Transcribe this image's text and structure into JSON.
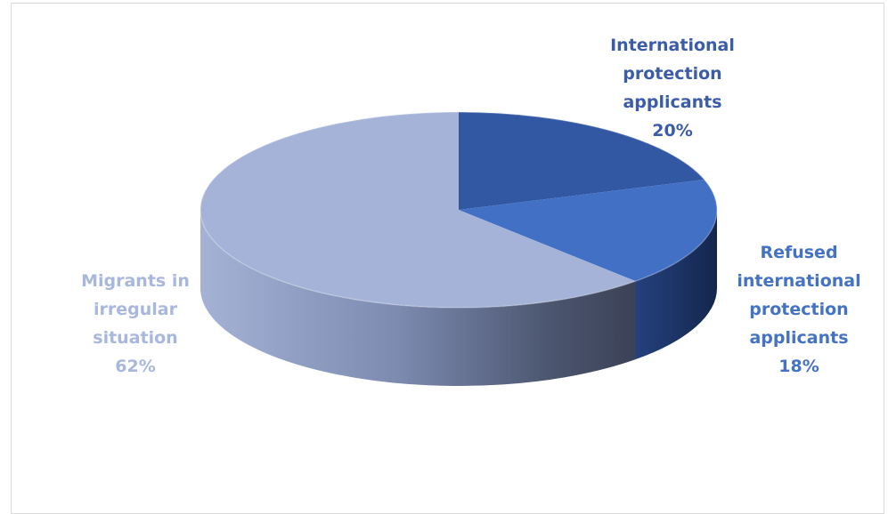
{
  "chart_data": {
    "type": "pie",
    "title": "",
    "three_d": true,
    "legend": "none",
    "slices": [
      {
        "name": "International protection applicants",
        "label_lines": [
          "International",
          "protection",
          "applicants"
        ],
        "value": 20,
        "pct_label": "20%",
        "color": "#3258a4",
        "label_color": "#3b5ca8"
      },
      {
        "name": "Refused international protection applicants",
        "label_lines": [
          "Refused",
          "international",
          "protection",
          "applicants"
        ],
        "value": 18,
        "pct_label": "18%",
        "color": "#4170c4",
        "label_color": "#4472c4"
      },
      {
        "name": "Migrants in irregular situation",
        "label_lines": [
          "Migrants in",
          "irregular",
          "situation"
        ],
        "value": 62,
        "pct_label": "62%",
        "color": "#a5b3d8",
        "label_color": "#a8b7dc"
      }
    ]
  }
}
